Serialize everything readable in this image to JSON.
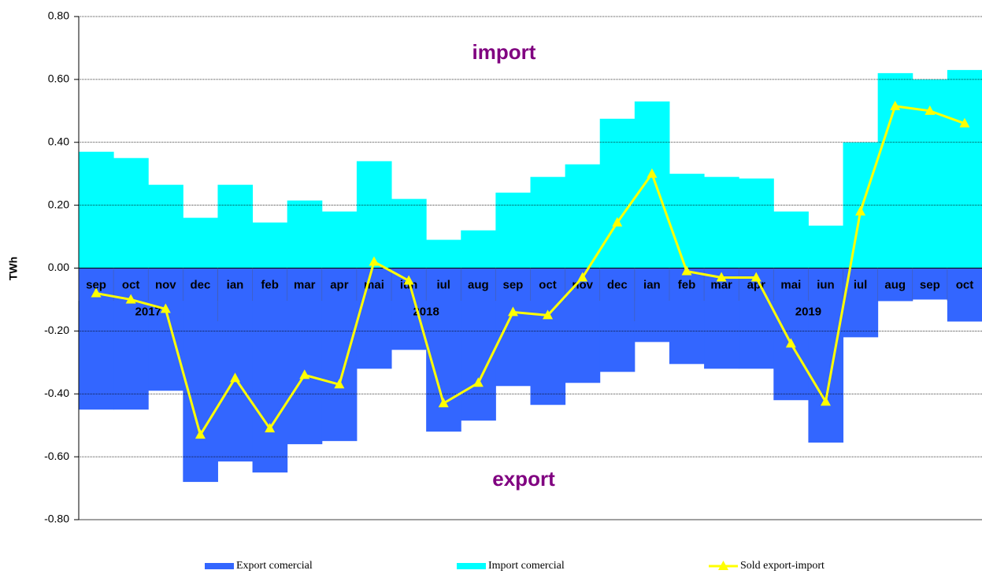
{
  "chart_data": {
    "type": "bar",
    "y_label": "TWh",
    "annotations": [
      "import",
      "export"
    ],
    "categories": [
      "sep",
      "oct",
      "nov",
      "dec",
      "ian",
      "feb",
      "mar",
      "apr",
      "mai",
      "iun",
      "iul",
      "aug",
      "sep",
      "oct",
      "nov",
      "dec",
      "ian",
      "feb",
      "mar",
      "apr",
      "mai",
      "iun",
      "iul",
      "aug",
      "sep",
      "oct"
    ],
    "year_groups": [
      {
        "label": "2017",
        "span": 4
      },
      {
        "label": "2018",
        "span": 12
      },
      {
        "label": "2019",
        "span": 10
      }
    ],
    "series": [
      {
        "name": "Export comercial",
        "type": "bar",
        "color": "#3366ff",
        "values": [
          -0.45,
          -0.45,
          -0.39,
          -0.68,
          -0.615,
          -0.65,
          -0.56,
          -0.55,
          -0.32,
          -0.26,
          -0.52,
          -0.485,
          -0.375,
          -0.435,
          -0.365,
          -0.33,
          -0.235,
          -0.305,
          -0.32,
          -0.32,
          -0.42,
          -0.555,
          -0.22,
          -0.105,
          -0.1,
          -0.17
        ]
      },
      {
        "name": "Import comercial",
        "type": "bar",
        "color": "#00ffff",
        "values": [
          0.37,
          0.35,
          0.265,
          0.16,
          0.265,
          0.145,
          0.215,
          0.18,
          0.34,
          0.22,
          0.09,
          0.12,
          0.24,
          0.29,
          0.33,
          0.475,
          0.53,
          0.3,
          0.29,
          0.285,
          0.18,
          0.135,
          0.4,
          0.62,
          0.6,
          0.63
        ]
      },
      {
        "name": "Sold export-import",
        "type": "line",
        "color": "#ffff00",
        "values": [
          -0.08,
          -0.1,
          -0.13,
          -0.53,
          -0.35,
          -0.51,
          -0.34,
          -0.37,
          0.02,
          -0.04,
          -0.43,
          -0.365,
          -0.14,
          -0.15,
          -0.03,
          0.145,
          0.3,
          -0.01,
          -0.03,
          -0.03,
          -0.24,
          -0.425,
          0.18,
          0.515,
          0.5,
          0.46
        ]
      }
    ],
    "ylim": [
      -0.8,
      0.8
    ],
    "yticks": [
      {
        "value": -0.8,
        "label": "-0.80"
      },
      {
        "value": -0.6,
        "label": "-0.60"
      },
      {
        "value": -0.4,
        "label": "-0.40"
      },
      {
        "value": -0.2,
        "label": "-0.20"
      },
      {
        "value": 0,
        "label": "0.00"
      },
      {
        "value": 0.2,
        "label": "0.20"
      },
      {
        "value": 0.4,
        "label": "0.40"
      },
      {
        "value": 0.6,
        "label": "0.60"
      },
      {
        "value": 0.8,
        "label": "0.80"
      }
    ],
    "grid": true
  }
}
